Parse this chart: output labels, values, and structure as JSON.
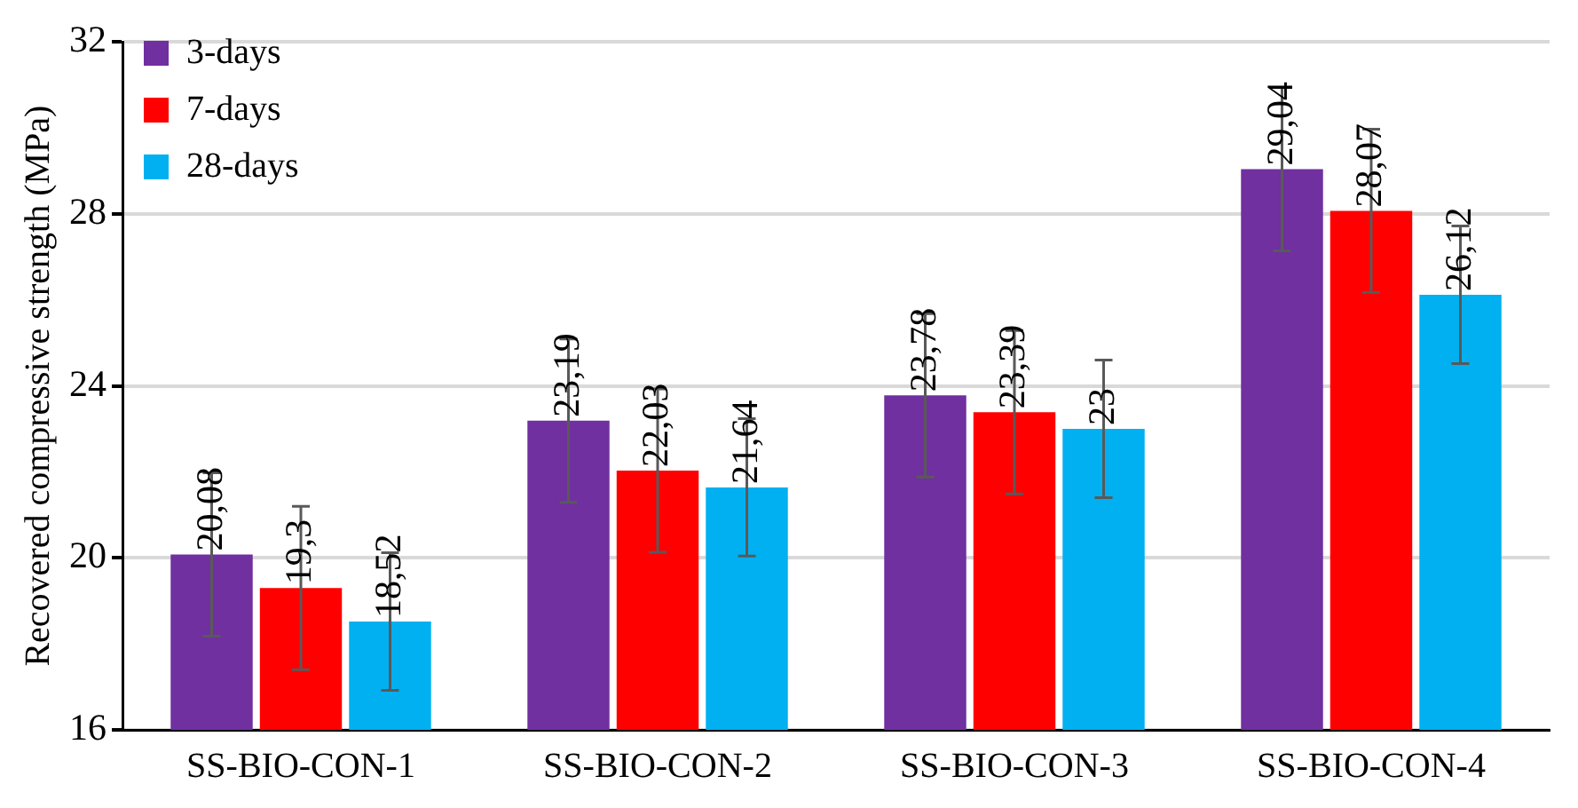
{
  "chart_data": {
    "type": "bar",
    "ylabel": "Recovered compressive strength (MPa)",
    "categories": [
      "SS-BIO-CON-1",
      "SS-BIO-CON-2",
      "SS-BIO-CON-3",
      "SS-BIO-CON-4"
    ],
    "series": [
      {
        "name": "3-days",
        "color": "#7030a0",
        "values": [
          20.08,
          23.19,
          23.78,
          29.04
        ],
        "errors": [
          1.9,
          1.9,
          1.9,
          1.9
        ],
        "value_labels": [
          "20,08",
          "23,19",
          "23,78",
          "29,04"
        ]
      },
      {
        "name": "7-days",
        "color": "#ff0000",
        "values": [
          19.3,
          22.03,
          23.39,
          28.07
        ],
        "errors": [
          1.9,
          1.9,
          1.9,
          1.9
        ],
        "value_labels": [
          "19,3",
          "22,03",
          "23,39",
          "28,07"
        ]
      },
      {
        "name": "28-days",
        "color": "#00b0f0",
        "values": [
          18.52,
          21.64,
          23,
          26.12
        ],
        "errors": [
          1.6,
          1.6,
          1.6,
          1.6
        ],
        "value_labels": [
          "18,52",
          "21,64",
          "23",
          "26,12"
        ]
      }
    ],
    "ylim": [
      16,
      32
    ],
    "yticks": [
      16,
      20,
      24,
      28,
      32
    ],
    "grid": "y",
    "legend": "top left"
  }
}
